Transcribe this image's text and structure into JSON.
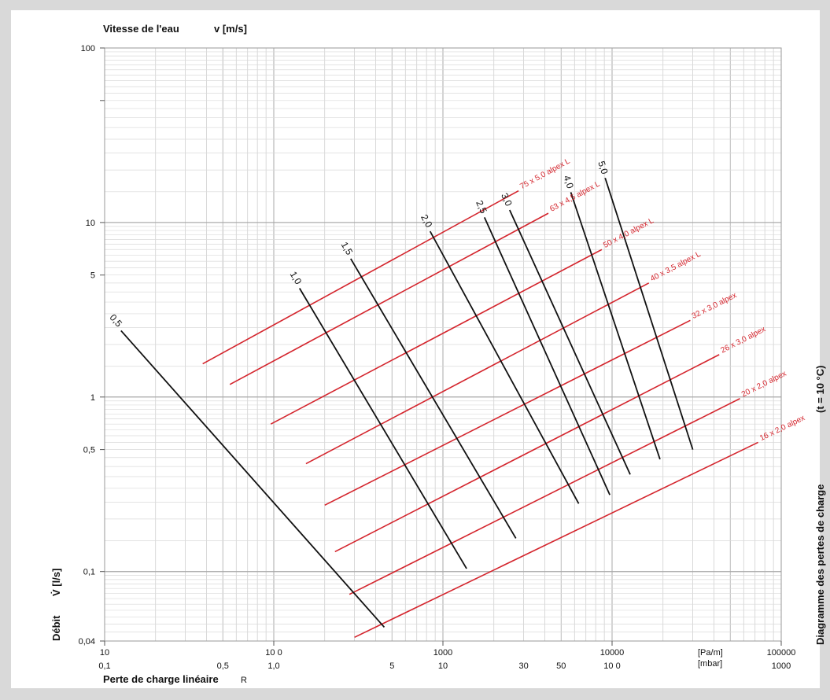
{
  "chart_data": {
    "type": "line",
    "title": "",
    "vertical_title": "Diagramme des pertes de charge",
    "vertical_condition": "(t  = 10  °C)",
    "top_axis": {
      "label": "Vitesse de l'eau",
      "symbol": "v  [m/s]"
    },
    "y_axis": {
      "label": "Débit",
      "symbol": "V̇  [l/s]",
      "scale": "log",
      "range": [
        0.04,
        100
      ],
      "tick_labels": [
        {
          "value": 100,
          "text": "100"
        },
        {
          "value": 10,
          "text": "10"
        },
        {
          "value": 5,
          "text": "5"
        },
        {
          "value": 1,
          "text": "1"
        },
        {
          "value": 0.5,
          "text": "0,5"
        },
        {
          "value": 0.1,
          "text": "0,1"
        },
        {
          "value": 0.04,
          "text": "0,04"
        }
      ]
    },
    "x_axis": {
      "label": "Perte de charge linéaire",
      "symbol": "R",
      "scale": "log",
      "range": [
        10,
        100000
      ],
      "unit_top": "[Pa/m]",
      "unit_bottom": "[mbar]",
      "tick_labels_pa": [
        {
          "value": 10,
          "text": "10"
        },
        {
          "value": 100,
          "text": "10 0"
        },
        {
          "value": 1000,
          "text": "1000"
        },
        {
          "value": 10000,
          "text": "10000"
        },
        {
          "value": 100000,
          "text": "100000"
        }
      ],
      "tick_labels_mbar": [
        {
          "value": 10,
          "text": "0,1"
        },
        {
          "value": 50,
          "text": "0,5"
        },
        {
          "value": 100,
          "text": "1,0"
        },
        {
          "value": 500,
          "text": "5"
        },
        {
          "value": 1000,
          "text": "10"
        },
        {
          "value": 3000,
          "text": "30"
        },
        {
          "value": 5000,
          "text": "50"
        },
        {
          "value": 10000,
          "text": "10 0"
        },
        {
          "value": 100000,
          "text": "1000"
        }
      ]
    },
    "grid": true,
    "pipe_series": [
      {
        "name": "75 x 5,0   alpex   L",
        "start": [
          38,
          1.55
        ],
        "end": [
          2800,
          15.2
        ]
      },
      {
        "name": "63 x 4,5 alpex   L",
        "start": [
          55,
          1.18
        ],
        "end": [
          4200,
          11.3
        ]
      },
      {
        "name": "50 x 4,0 alpex   L",
        "start": [
          96,
          0.7
        ],
        "end": [
          8700,
          7.0
        ]
      },
      {
        "name": "40 x 3,5 alpex   L",
        "start": [
          155,
          0.415
        ],
        "end": [
          16500,
          4.5
        ]
      },
      {
        "name": "32 x 3,0  alpex",
        "start": [
          200,
          0.24
        ],
        "end": [
          29000,
          2.75
        ]
      },
      {
        "name": "26 x 3,0 alpex",
        "start": [
          230,
          0.13
        ],
        "end": [
          43000,
          1.75
        ]
      },
      {
        "name": "20 x 2,0 alpex",
        "start": [
          280,
          0.074
        ],
        "end": [
          57000,
          0.98
        ]
      },
      {
        "name": "16 x 2,0 alpex",
        "start": [
          300,
          0.042
        ],
        "end": [
          73000,
          0.55
        ]
      }
    ],
    "velocity_series": [
      {
        "name": "0,5",
        "start": [
          12.5,
          2.4
        ],
        "end": [
          450,
          0.048
        ]
      },
      {
        "name": "1,0",
        "start": [
          142,
          4.2
        ],
        "end": [
          1380,
          0.104
        ]
      },
      {
        "name": "1,5",
        "start": [
          285,
          6.2
        ],
        "end": [
          2700,
          0.155
        ]
      },
      {
        "name": "2,0",
        "start": [
          840,
          8.9
        ],
        "end": [
          6350,
          0.245
        ]
      },
      {
        "name": "2,5",
        "start": [
          1760,
          10.7
        ],
        "end": [
          9700,
          0.275
        ]
      },
      {
        "name": "3,0",
        "start": [
          2480,
          11.8
        ],
        "end": [
          12800,
          0.36
        ]
      },
      {
        "name": "4,0",
        "start": [
          5700,
          14.9
        ],
        "end": [
          19200,
          0.44
        ]
      },
      {
        "name": "5,0",
        "start": [
          9100,
          18.0
        ],
        "end": [
          30000,
          0.5
        ]
      }
    ]
  }
}
